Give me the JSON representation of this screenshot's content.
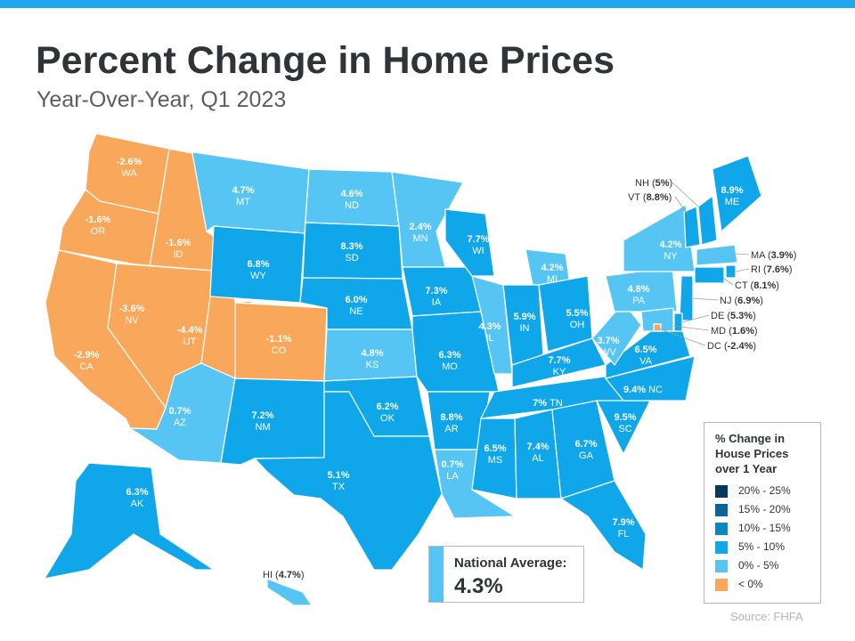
{
  "header": {
    "title": "Percent Change in Home Prices",
    "subtitle": "Year-Over-Year, Q1 2023"
  },
  "colors": {
    "top_bar": "#1fa9ec",
    "neg": "#f9a85b",
    "low": "#56c5f4",
    "mid": "#0fa6ea",
    "high": "#0a86c4",
    "higher": "#086699",
    "highest": "#063a5c"
  },
  "legend": {
    "title": "% Change in House Prices over 1 Year",
    "items": [
      {
        "label": "20% - 25%",
        "color": "#063a5c"
      },
      {
        "label": "15% - 20%",
        "color": "#086699"
      },
      {
        "label": "10% - 15%",
        "color": "#0a86c4"
      },
      {
        "label": "5% - 10%",
        "color": "#0fa6ea"
      },
      {
        "label": "0% - 5%",
        "color": "#56c5f4"
      },
      {
        "label": "< 0%",
        "color": "#f9a85b"
      }
    ]
  },
  "national": {
    "label": "National Average:",
    "value": "4.3%"
  },
  "source": "Source: FHFA",
  "states": [
    {
      "code": "WA",
      "value": "-2.6%"
    },
    {
      "code": "OR",
      "value": "-1.6%"
    },
    {
      "code": "CA",
      "value": "-2.9%"
    },
    {
      "code": "ID",
      "value": "-1.6%"
    },
    {
      "code": "NV",
      "value": "-3.6%"
    },
    {
      "code": "UT",
      "value": "-4.4%"
    },
    {
      "code": "AZ",
      "value": "0.7%"
    },
    {
      "code": "MT",
      "value": "4.7%"
    },
    {
      "code": "WY",
      "value": "6.8%"
    },
    {
      "code": "CO",
      "value": "-1.1%"
    },
    {
      "code": "NM",
      "value": "7.2%"
    },
    {
      "code": "ND",
      "value": "4.6%"
    },
    {
      "code": "SD",
      "value": "8.3%"
    },
    {
      "code": "NE",
      "value": "6.0%"
    },
    {
      "code": "KS",
      "value": "4.8%"
    },
    {
      "code": "OK",
      "value": "6.2%"
    },
    {
      "code": "TX",
      "value": "5.1%"
    },
    {
      "code": "MN",
      "value": "2.4%"
    },
    {
      "code": "IA",
      "value": "7.3%"
    },
    {
      "code": "MO",
      "value": "6.3%"
    },
    {
      "code": "AR",
      "value": "8.8%"
    },
    {
      "code": "LA",
      "value": "0.7%"
    },
    {
      "code": "WI",
      "value": "7.7%"
    },
    {
      "code": "IL",
      "value": "4.3%"
    },
    {
      "code": "MI",
      "value": "4.2%"
    },
    {
      "code": "IN",
      "value": "5.9%"
    },
    {
      "code": "OH",
      "value": "5.5%"
    },
    {
      "code": "KY",
      "value": "7.7%"
    },
    {
      "code": "TN",
      "value": "7%"
    },
    {
      "code": "MS",
      "value": "6.5%"
    },
    {
      "code": "AL",
      "value": "7.4%"
    },
    {
      "code": "GA",
      "value": "6.7%"
    },
    {
      "code": "FL",
      "value": "7.9%"
    },
    {
      "code": "SC",
      "value": "9.5%"
    },
    {
      "code": "NC",
      "value": "9.4%"
    },
    {
      "code": "VA",
      "value": "6.5%"
    },
    {
      "code": "WV",
      "value": "3.7%"
    },
    {
      "code": "PA",
      "value": "4.8%"
    },
    {
      "code": "NY",
      "value": "4.2%"
    },
    {
      "code": "ME",
      "value": "8.9%"
    },
    {
      "code": "AK",
      "value": "6.3%"
    },
    {
      "code": "HI",
      "value": "4.7%"
    },
    {
      "code": "NH",
      "value": "5%"
    },
    {
      "code": "VT",
      "value": "8.8%"
    },
    {
      "code": "MA",
      "value": "3.9%"
    },
    {
      "code": "RI",
      "value": "7.6%"
    },
    {
      "code": "CT",
      "value": "8.1%"
    },
    {
      "code": "NJ",
      "value": "6.9%"
    },
    {
      "code": "DE",
      "value": "5.3%"
    },
    {
      "code": "MD",
      "value": "1.6%"
    },
    {
      "code": "DC",
      "value": "-2.4%"
    }
  ]
}
